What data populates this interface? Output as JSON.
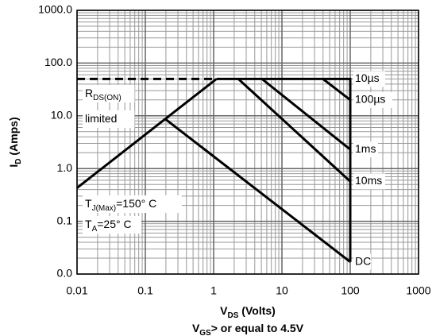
{
  "chart_data": {
    "type": "line",
    "xlabel": {
      "main": "V",
      "sub": "DS",
      "rest": " (Volts)"
    },
    "ylabel": {
      "main": "I",
      "sub": "D",
      "rest": " (Amps)"
    },
    "subtitle": {
      "main": "V",
      "sub": "GS",
      "rest": "> or equal to 4.5V"
    },
    "xscale": "log",
    "yscale": "log",
    "xlim": [
      0.01,
      1000
    ],
    "ylim": [
      0.01,
      1000
    ],
    "xticks": [
      0.01,
      0.1,
      1,
      10,
      100,
      1000
    ],
    "yticks": [
      {
        "value": 1000,
        "label": "1000.0"
      },
      {
        "value": 100,
        "label": "100.0"
      },
      {
        "value": 10,
        "label": "10.0"
      },
      {
        "value": 1,
        "label": "1.0"
      },
      {
        "value": 0.1,
        "label": "0.1"
      },
      {
        "value": 0.01,
        "label": "0.0"
      }
    ],
    "grid": true,
    "color": "#000000",
    "series": [
      {
        "x": [
          0.01,
          1.1
        ],
        "values": [
          0.43,
          50
        ]
      },
      {
        "x": [
          0.01,
          1.1
        ],
        "values": [
          50,
          50
        ],
        "dashed": true
      },
      {
        "name": "10µs",
        "x": [
          1.1,
          100,
          100
        ],
        "values": [
          50,
          50,
          0.017
        ]
      },
      {
        "name": "100µs",
        "x": [
          40,
          100
        ],
        "values": [
          50,
          20
        ]
      },
      {
        "name": "1ms",
        "x": [
          5.1,
          100
        ],
        "values": [
          50,
          2.3
        ]
      },
      {
        "name": "10ms",
        "x": [
          2.3,
          100
        ],
        "values": [
          50,
          0.57
        ]
      },
      {
        "name": "DC",
        "x": [
          0.2,
          100
        ],
        "values": [
          8.5,
          0.017
        ]
      }
    ],
    "annotations": [
      {
        "main": "R",
        "sub": "DS(ON)",
        "rest": ""
      },
      {
        "main": "limited",
        "sub": "",
        "rest": ""
      },
      {
        "main": "T",
        "sub": "J(Max)",
        "rest": "=150° C"
      },
      {
        "main": "T",
        "sub": "A",
        "rest": "=25° C"
      }
    ]
  }
}
